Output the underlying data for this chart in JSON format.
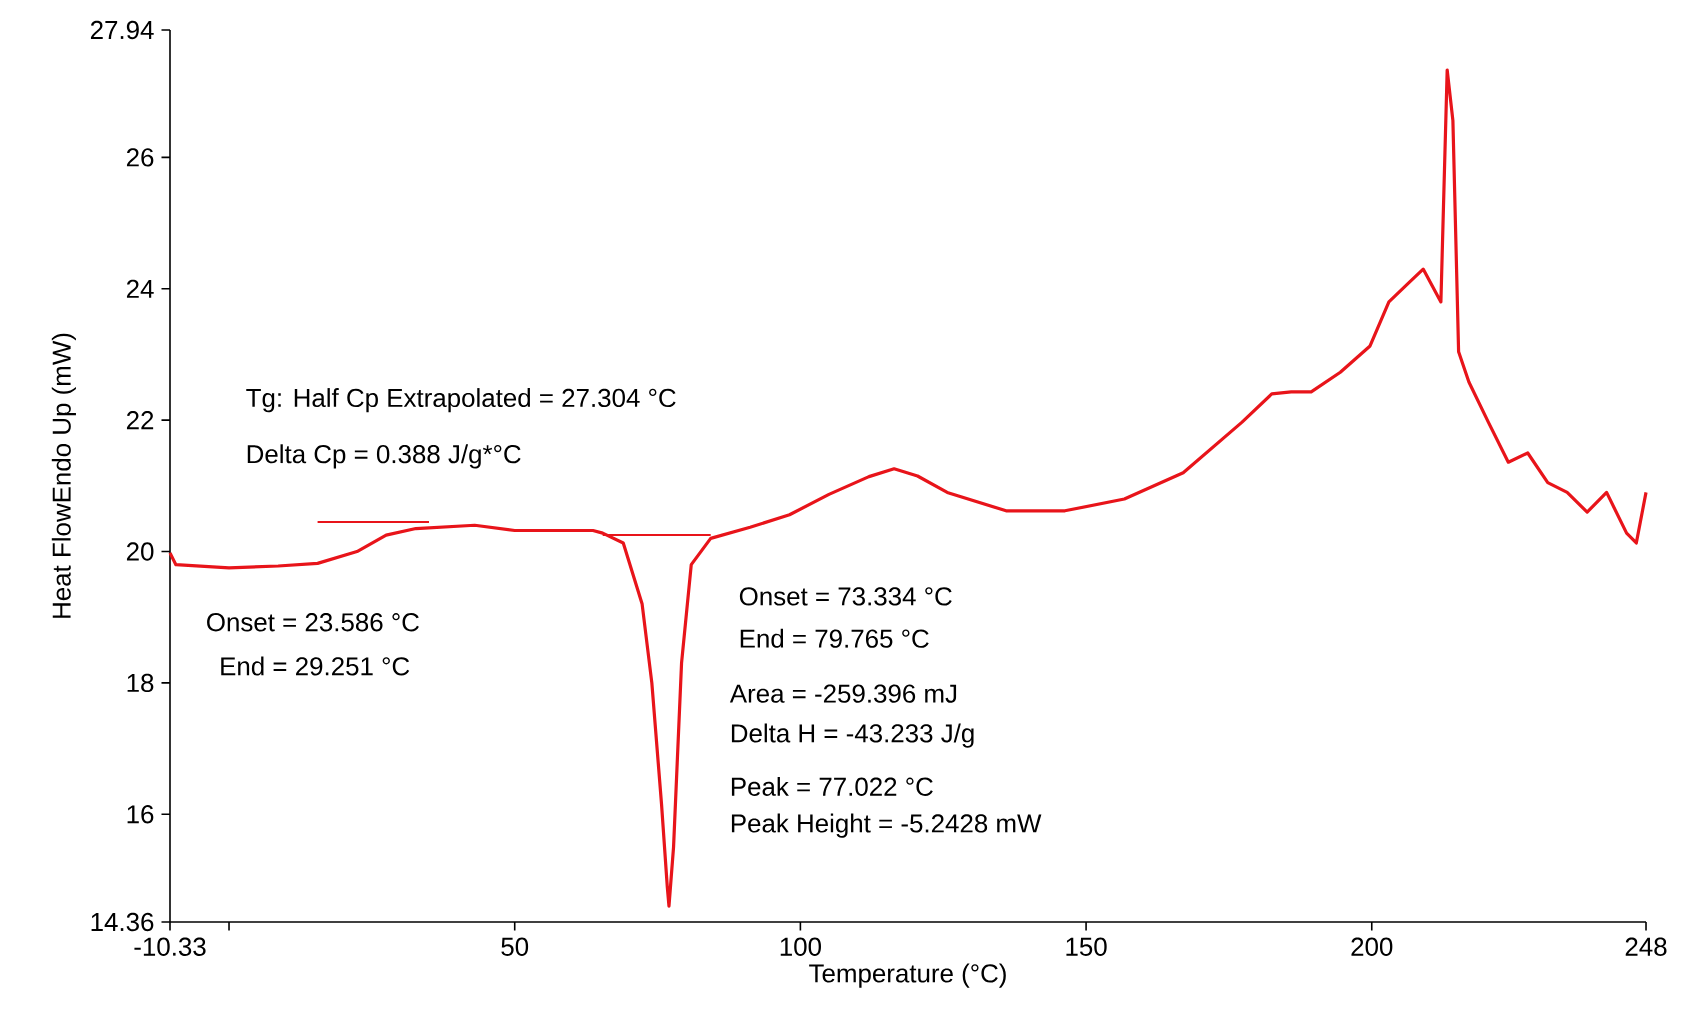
{
  "chart_data": {
    "type": "line",
    "xlabel": "Temperature (°C)",
    "ylabel": "Heat FlowEndo Up (mW)",
    "xlim": [
      -10.33,
      248
    ],
    "ylim": [
      14.36,
      27.94
    ],
    "xticks": [
      -10.33,
      {
        "value": 0,
        "label": null
      },
      50,
      100,
      150,
      200,
      248
    ],
    "yticks": [
      14.36,
      16,
      18,
      20,
      22,
      24,
      26,
      27.94
    ],
    "grid": false,
    "marker": "none",
    "line_style": "solid",
    "series": [
      {
        "color": "#e8141a",
        "x": [
          -10.33,
          -9.3,
          0,
          8.6,
          15.5,
          22.4,
          27.5,
          32.7,
          43,
          50,
          63.7,
          65.4,
          69,
          72.3,
          74,
          75.7,
          76.7,
          77.0,
          77.8,
          79.2,
          80.9,
          84.3,
          91.2,
          98.1,
          105,
          112,
          116.4,
          120.5,
          125.7,
          136,
          146.3,
          156.7,
          167,
          177.3,
          182.5,
          185.9,
          189.4,
          194.5,
          199.7,
          203,
          206.6,
          209,
          212.1,
          213.2,
          214.2,
          215.2,
          217,
          220.4,
          223.9,
          227.3,
          230.8,
          234.2,
          237.7,
          241.1,
          244.6,
          246.3,
          248
        ],
        "values": [
          19.98,
          19.8,
          19.75,
          19.78,
          19.82,
          20.0,
          20.25,
          20.35,
          20.4,
          20.32,
          20.32,
          20.28,
          20.13,
          19.2,
          18.0,
          16.15,
          14.9,
          14.6,
          15.5,
          18.3,
          19.8,
          20.2,
          20.37,
          20.56,
          20.87,
          21.14,
          21.26,
          21.15,
          20.9,
          20.62,
          20.62,
          20.8,
          21.2,
          21.97,
          22.4,
          22.43,
          22.43,
          22.73,
          23.13,
          23.8,
          24.1,
          24.3,
          23.8,
          27.33,
          26.56,
          23.04,
          22.58,
          21.97,
          21.36,
          21.5,
          21.05,
          20.9,
          20.6,
          20.9,
          20.28,
          20.13,
          20.9
        ]
      },
      {
        "color": "#e8141a",
        "x": [
          15.5,
          35
        ],
        "values": [
          20.45,
          20.45
        ]
      },
      {
        "color": "#e8141a",
        "x": [
          65.4,
          84.3
        ],
        "values": [
          20.25,
          20.25
        ]
      }
    ],
    "annotations": [
      "Tg: Half Cp Extrapolated = 27.304 °C",
      "Delta Cp = 0.388 J/g*°C",
      "Onset = 23.586 °C",
      "End = 29.251 °C",
      "Onset = 73.334 °C",
      "End = 79.765 °C",
      "Area = -259.396 mJ",
      "Delta H = -43.233 J/g",
      "Peak = 77.022 °C",
      "Peak Height = -5.2428 mW"
    ]
  }
}
